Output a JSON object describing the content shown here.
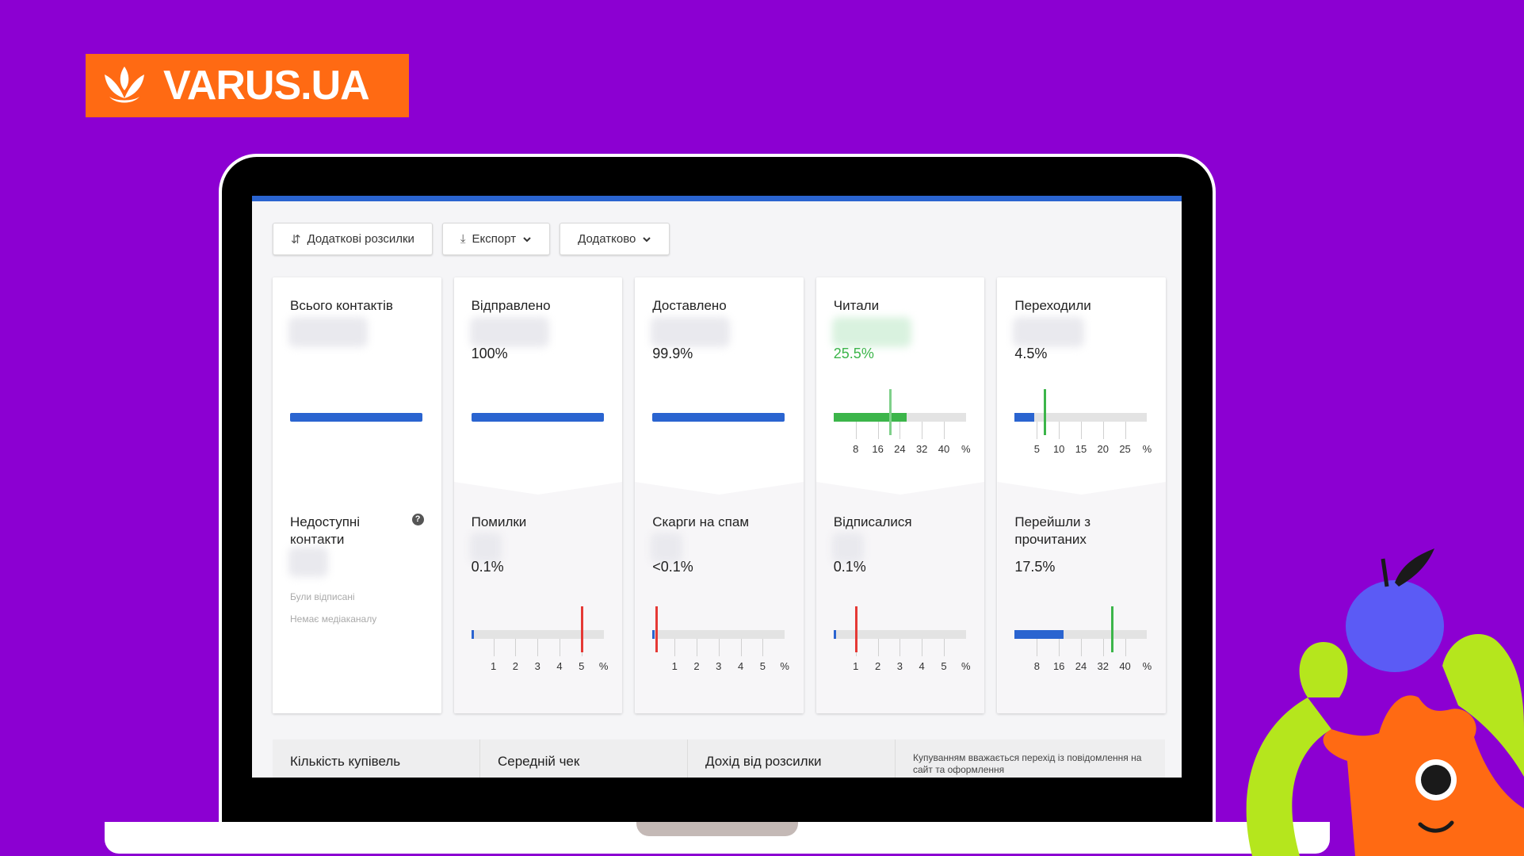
{
  "logo": {
    "text": "VARUS.UA",
    "color": "#ff6a13"
  },
  "toolbar": {
    "buttons": [
      {
        "label": "Додаткові розсилки",
        "icon": "split-icon"
      },
      {
        "label": "Експорт",
        "icon": "download-icon"
      },
      {
        "label": "Додатково",
        "icon": ""
      }
    ]
  },
  "cards": [
    {
      "title": "Всього контактів",
      "pct": "",
      "lower_title": "Недоступні контакти",
      "lower_pct": "",
      "sub": [
        "Були відписані",
        "Немає медіаканалу"
      ]
    },
    {
      "title": "Відправлено",
      "pct": "100%",
      "lower_title": "Помилки",
      "lower_pct": "0.1%"
    },
    {
      "title": "Доставлено",
      "pct": "99.9%",
      "lower_title": "Скарги на спам",
      "lower_pct": "<0.1%"
    },
    {
      "title": "Читали",
      "pct": "25.5%",
      "lower_title": "Відписалися",
      "lower_pct": "0.1%"
    },
    {
      "title": "Переходили",
      "pct": "4.5%",
      "lower_title": "Перейшли з прочитаних",
      "lower_pct": "17.5%"
    }
  ],
  "scales": {
    "read": {
      "ticks": [
        "8",
        "16",
        "24",
        "32",
        "40",
        "%"
      ],
      "fill": 0.55,
      "marker": 0.42,
      "fill_color": "#3cb54a",
      "marker_color": "#7fd08a"
    },
    "clicked": {
      "ticks": [
        "5",
        "10",
        "15",
        "20",
        "25",
        "%"
      ],
      "fill": 0.15,
      "marker": 0.22,
      "fill_color": "#2a64d0",
      "marker_color": "#3cb54a"
    },
    "errors": {
      "ticks": [
        "1",
        "2",
        "3",
        "4",
        "5",
        "%"
      ],
      "fill": 0.01,
      "marker": 0.83,
      "fill_color": "#2a64d0",
      "marker_color": "#e53935"
    },
    "spam": {
      "ticks": [
        "1",
        "2",
        "3",
        "4",
        "5",
        "%"
      ],
      "fill": 0.0,
      "marker": 0.02,
      "fill_color": "#2a64d0",
      "marker_color": "#e53935"
    },
    "unsub": {
      "ticks": [
        "1",
        "2",
        "3",
        "4",
        "5",
        "%"
      ],
      "fill": 0.01,
      "marker": 0.16,
      "fill_color": "#2a64d0",
      "marker_color": "#e53935"
    },
    "clicked_read": {
      "ticks": [
        "8",
        "16",
        "24",
        "32",
        "40",
        "%"
      ],
      "fill": 0.37,
      "marker": 0.73,
      "fill_color": "#2a64d0",
      "marker_color": "#3cb54a"
    }
  },
  "bottom": {
    "cells": [
      "Кількість купівель",
      "Середній чек",
      "Дохід від розсилки"
    ],
    "note": "Купуванням вважається перехід із повідомлення на сайт та оформлення"
  }
}
